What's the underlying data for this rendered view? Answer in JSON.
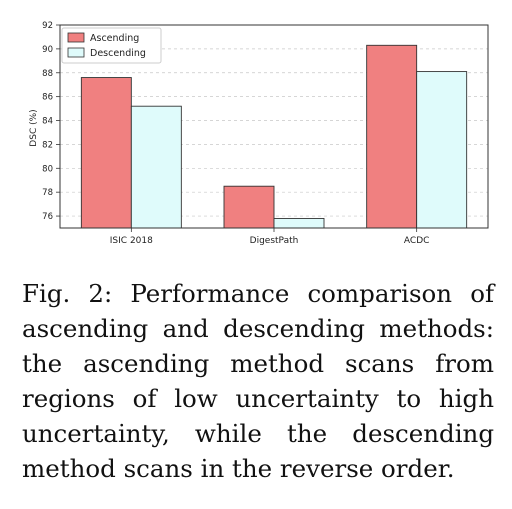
{
  "chart_data": {
    "type": "bar",
    "categories": [
      "ISIC 2018",
      "DigestPath",
      "ACDC"
    ],
    "series": [
      {
        "name": "Ascending",
        "values": [
          87.6,
          78.5,
          90.3
        ],
        "color": "#f08080"
      },
      {
        "name": "Descending",
        "values": [
          85.2,
          75.8,
          88.1
        ],
        "color": "#dffbfb"
      }
    ],
    "ylabel": "DSC (%)",
    "ylim": [
      75,
      92
    ],
    "yticks": [
      "76",
      "78",
      "80",
      "82",
      "84",
      "86",
      "88",
      "90",
      "92"
    ],
    "grid": true,
    "legend_position": "top-left"
  },
  "caption": {
    "label": "Fig. 2:",
    "text": "Performance comparison of ascending and descending methods: the ascending method scans from regions of low uncertainty to high uncertainty, while the descending method scans in the reverse order."
  }
}
